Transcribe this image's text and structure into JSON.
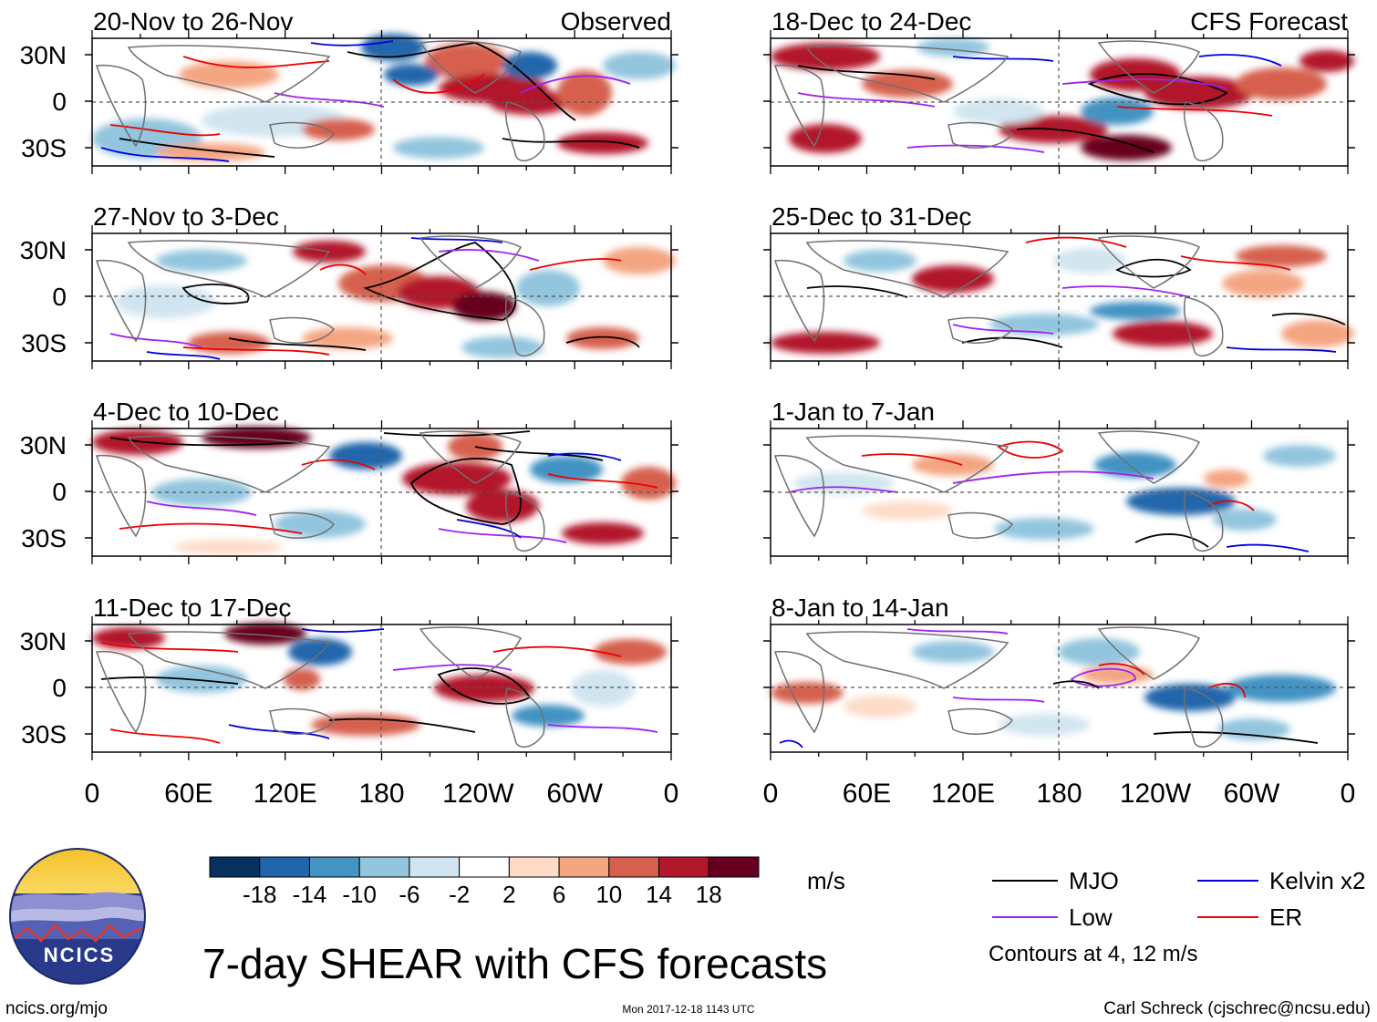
{
  "panel_tag_left": "Observed",
  "panel_tag_right": "CFS Forecast",
  "lat_ticks": [
    "30N",
    "0",
    "30S"
  ],
  "lon_ticks": [
    "0",
    "60E",
    "120E",
    "180",
    "120W",
    "60W",
    "0"
  ],
  "panels_left": [
    {
      "title": "20-Nov to 26-Nov"
    },
    {
      "title": "27-Nov to 3-Dec"
    },
    {
      "title": "4-Dec to 10-Dec"
    },
    {
      "title": "11-Dec to 17-Dec"
    }
  ],
  "panels_right": [
    {
      "title": "18-Dec to 24-Dec"
    },
    {
      "title": "25-Dec to 31-Dec"
    },
    {
      "title": "1-Jan to 7-Jan"
    },
    {
      "title": "8-Jan to 14-Jan"
    }
  ],
  "colorbar": {
    "colors": [
      "#08305e",
      "#2166ac",
      "#4393c3",
      "#92c5de",
      "#d1e5f0",
      "#ffffff",
      "#fddbc7",
      "#f4a582",
      "#d6604d",
      "#b2182b",
      "#67001f"
    ],
    "tick_labels": [
      "-18",
      "-14",
      "-10",
      "-6",
      "-2",
      "2",
      "6",
      "10",
      "14",
      "18"
    ],
    "units": "m/s"
  },
  "legend": {
    "items": [
      {
        "label": "MJO",
        "color": "#000000"
      },
      {
        "label": "Kelvin x2",
        "color": "#0000dd"
      },
      {
        "label": "Low",
        "color": "#a020f0"
      },
      {
        "label": "ER",
        "color": "#ee0000"
      }
    ],
    "note": "Contours at 4, 12 m/s"
  },
  "logo": {
    "text": "NCICS"
  },
  "main_title": "7-day SHEAR with CFS forecasts",
  "footer": {
    "left": "ncics.org/mjo",
    "center": "Mon 2017-12-18 1143 UTC",
    "right": "Carl Schreck (cjschrec@ncsu.edu)"
  }
}
